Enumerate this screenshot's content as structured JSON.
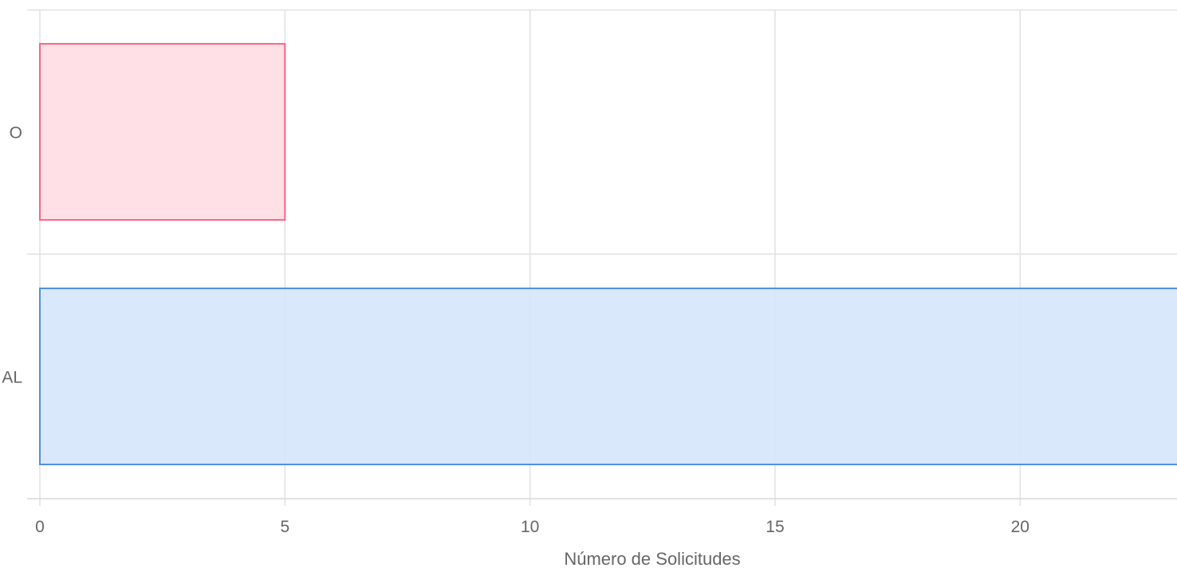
{
  "chart_data": {
    "type": "bar",
    "orientation": "horizontal",
    "categories": [
      "O",
      "AL"
    ],
    "values": [
      5,
      24
    ],
    "bar_colors": [
      {
        "fill": "#fedde3",
        "stroke": "#ff6384"
      },
      {
        "fill": "#d6e6fb",
        "stroke": "#4f8fe6"
      }
    ],
    "title": "",
    "xlabel": "Número de Solicitudes",
    "ylabel": "",
    "xlim": [
      0,
      23.2
    ],
    "x_ticks": [
      "0",
      "5",
      "10",
      "15",
      "20"
    ],
    "grid": true,
    "grid_color": "#e1e1e1"
  }
}
